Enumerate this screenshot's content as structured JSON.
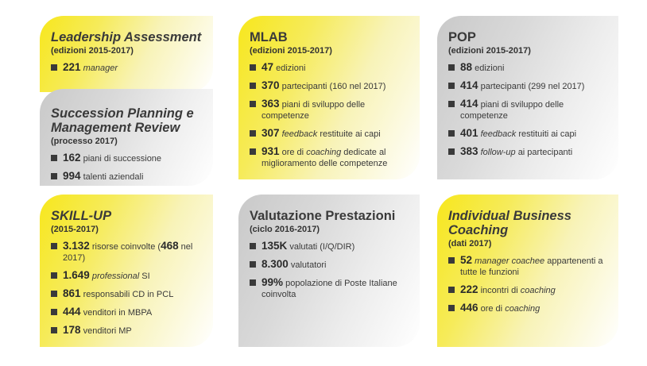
{
  "cards": {
    "leadership": {
      "title": "Leadership Assessment",
      "subtitle": "(edizioni 2015-2017)",
      "items": [
        {
          "value": "221",
          "text": "manager"
        }
      ]
    },
    "succession": {
      "title": "Succession Planning e Management Review",
      "subtitle": "(processo 2017)",
      "items": [
        {
          "value": "162",
          "text": "piani di successione"
        },
        {
          "value": "994",
          "text": "talenti aziendali"
        }
      ]
    },
    "mlab": {
      "title": "MLAB",
      "subtitle": "(edizioni 2015-2017)",
      "items": [
        {
          "value": "47",
          "text": "edizioni"
        },
        {
          "value": "370",
          "text": "partecipanti (160 nel 2017)"
        },
        {
          "value": "363",
          "text": "piani di sviluppo delle competenze"
        },
        {
          "value": "307",
          "text_italic": "feedback",
          "text_after": "restituite ai capi"
        },
        {
          "value": "931",
          "text_before": "ore di",
          "text_italic": "coaching",
          "text_after": "dedicate al miglioramento delle competenze"
        }
      ]
    },
    "pop": {
      "title": "POP",
      "subtitle": "(edizioni 2015-2017)",
      "items": [
        {
          "value": "88",
          "text": "edizioni"
        },
        {
          "value": "414",
          "text": "partecipanti (299 nel 2017)"
        },
        {
          "value": "414",
          "text": "piani di sviluppo delle competenze"
        },
        {
          "value": "401",
          "text_italic": "feedback",
          "text_after": "restituiti ai capi"
        },
        {
          "value": "383",
          "text_italic": "follow-up",
          "text_after": "ai partecipanti"
        }
      ]
    },
    "skill": {
      "title": "SKILL-UP",
      "subtitle": "(2015-2017)",
      "items": [
        {
          "value": "3.132",
          "text": "risorse coinvolte (",
          "value2": "468",
          "text2": "nel 2017)"
        },
        {
          "value": "1.649",
          "text_italic": "professional",
          "text_after": "SI"
        },
        {
          "value": "861",
          "text": "responsabili CD in PCL"
        },
        {
          "value": "444",
          "text": "venditori in MBPA"
        },
        {
          "value": "178",
          "text": "venditori MP"
        }
      ]
    },
    "valutazione": {
      "title": "Valutazione Prestazioni",
      "subtitle": "(ciclo 2016-2017)",
      "items": [
        {
          "value": "135K",
          "text": "valutati (I/Q/DIR)"
        },
        {
          "value": "8.300",
          "text": "valutatori"
        },
        {
          "value": "99%",
          "text": "popolazione di Poste Italiane coinvolta"
        }
      ]
    },
    "ibc": {
      "title": "Individual Business Coaching",
      "subtitle": "(dati 2017)",
      "items": [
        {
          "value": "52",
          "text_italic": "manager coachee",
          "text_after": "appartenenti a tutte le funzioni"
        },
        {
          "value": "222",
          "text_before": "incontri di",
          "text_italic": "coaching"
        },
        {
          "value": "446",
          "text_before": "ore di",
          "text_italic": "coaching"
        }
      ]
    }
  }
}
